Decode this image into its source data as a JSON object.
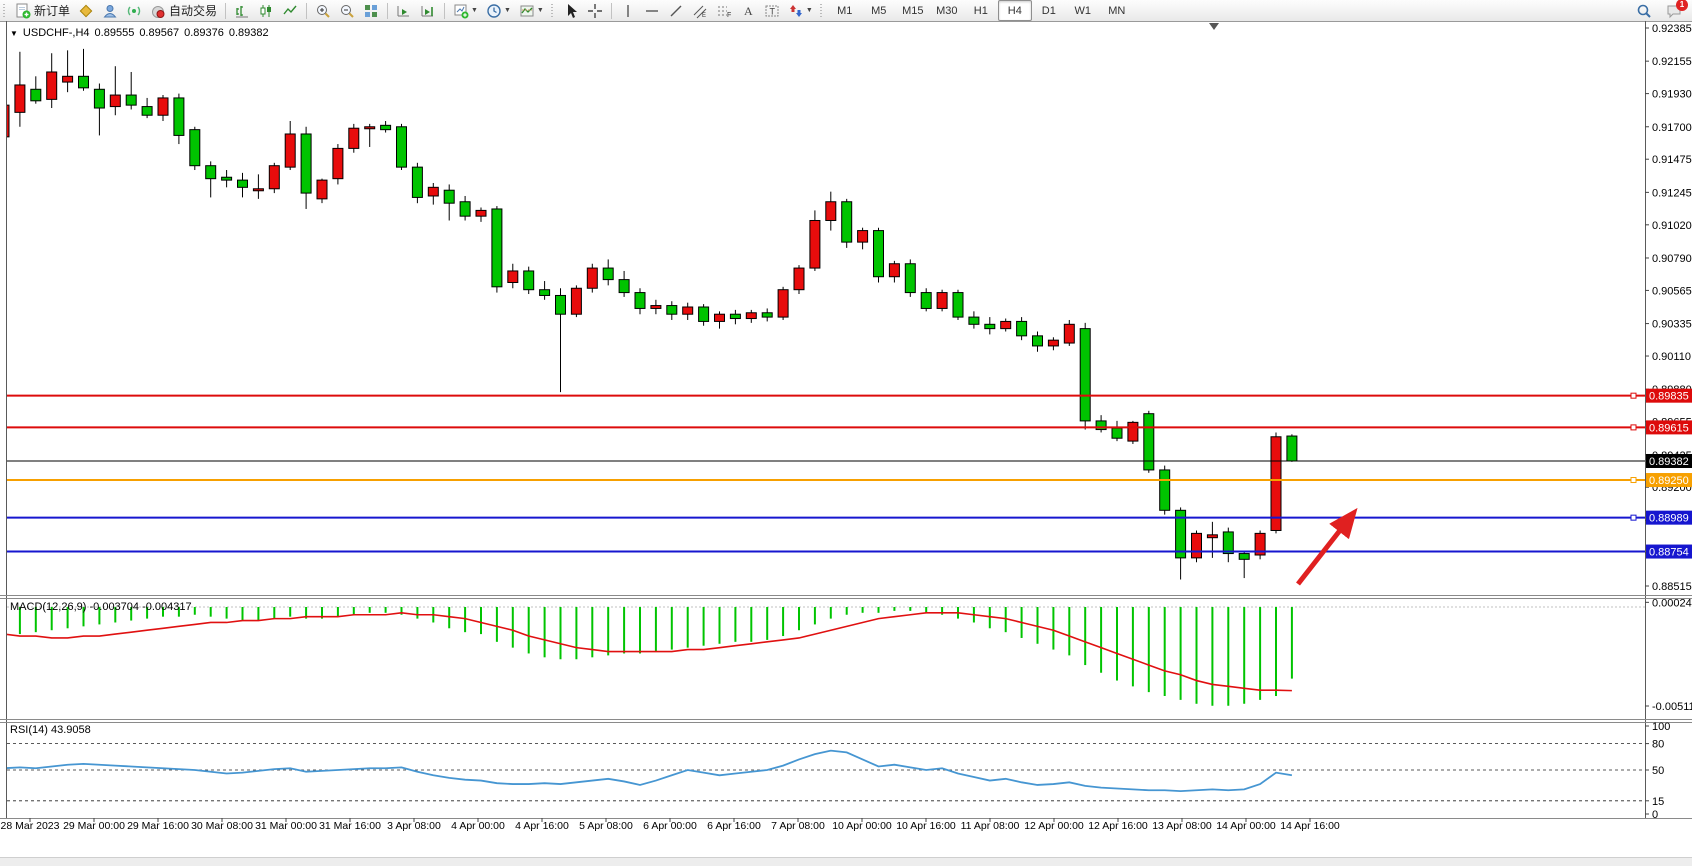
{
  "toolbar": {
    "new_order_label": "新订单",
    "auto_trading_label": "自动交易",
    "timeframes": [
      "M1",
      "M5",
      "M15",
      "M30",
      "H1",
      "H4",
      "D1",
      "W1",
      "MN"
    ],
    "active_timeframe": "H4",
    "notification_count": "1"
  },
  "chart_header": {
    "symbol": "USDCHF-,H4",
    "open": "0.89555",
    "high": "0.89567",
    "low": "0.89376",
    "close": "0.89382"
  },
  "price_axis": {
    "ticks": [
      "0.92385",
      "0.92155",
      "0.91930",
      "0.91700",
      "0.91475",
      "0.91245",
      "0.91020",
      "0.90790",
      "0.90565",
      "0.90335",
      "0.90110",
      "0.89880",
      "0.89655",
      "0.89425",
      "0.89200",
      "0.88970",
      "0.88745",
      "0.88515"
    ]
  },
  "hlines": [
    {
      "price": "0.89835",
      "value": 0.89835,
      "color": "#dd0b0b",
      "width": 2,
      "handle": true
    },
    {
      "price": "0.89615",
      "value": 0.89615,
      "color": "#dd0b0b",
      "width": 2,
      "handle": true
    },
    {
      "price": "0.89382",
      "value": 0.89382,
      "color": "#000000",
      "width": 1,
      "handle": false
    },
    {
      "price": "0.89250",
      "value": 0.8925,
      "color": "#f7a000",
      "width": 2,
      "handle": true
    },
    {
      "price": "0.88989",
      "value": 0.88989,
      "color": "#1616cf",
      "width": 2,
      "handle": true
    },
    {
      "price": "0.88754",
      "value": 0.88754,
      "color": "#1616cf",
      "width": 2,
      "handle": false
    }
  ],
  "time_axis": {
    "labels": [
      "28 Mar 2023",
      "29 Mar 00:00",
      "29 Mar 16:00",
      "30 Mar 08:00",
      "31 Mar 00:00",
      "31 Mar 16:00",
      "3 Apr 08:00",
      "4 Apr 00:00",
      "4 Apr 16:00",
      "5 Apr 08:00",
      "6 Apr 00:00",
      "6 Apr 16:00",
      "7 Apr 08:00",
      "10 Apr 00:00",
      "10 Apr 16:00",
      "11 Apr 08:00",
      "12 Apr 00:00",
      "12 Apr 16:00",
      "13 Apr 08:00",
      "14 Apr 00:00",
      "14 Apr 16:00"
    ]
  },
  "macd": {
    "label": "MACD(12,26,9)",
    "value_main": "-0.003704",
    "value_signal": "-0.004317",
    "axis_max": "0.000241",
    "axis_min": "-0.005115",
    "histogram_color": "#00c400",
    "signal_color": "#e01010",
    "histogram": [
      -0.0013,
      -0.0014,
      -0.0013,
      -0.0012,
      -0.0011,
      -0.001,
      -0.0009,
      -0.0008,
      -0.0007,
      -0.0006,
      -0.0005,
      -0.0005,
      -0.0004,
      -0.0005,
      -0.0006,
      -0.0007,
      -0.0007,
      -0.0006,
      -0.0005,
      -0.0006,
      -0.0006,
      -0.0005,
      -0.0004,
      -0.0003,
      -0.0003,
      -0.0004,
      -0.0006,
      -0.0008,
      -0.0011,
      -0.0013,
      -0.0014,
      -0.0018,
      -0.0021,
      -0.0024,
      -0.0026,
      -0.0027,
      -0.0027,
      -0.0026,
      -0.0025,
      -0.0024,
      -0.0024,
      -0.0023,
      -0.0022,
      -0.0021,
      -0.002,
      -0.0019,
      -0.0018,
      -0.0018,
      -0.0017,
      -0.0015,
      -0.0012,
      -0.0009,
      -0.0006,
      -0.0004,
      -0.0003,
      -0.0003,
      -0.0002,
      -0.0002,
      -0.0003,
      -0.0004,
      -0.0006,
      -0.0008,
      -0.0011,
      -0.0013,
      -0.0016,
      -0.0019,
      -0.0022,
      -0.0025,
      -0.003,
      -0.0034,
      -0.0038,
      -0.0041,
      -0.0044,
      -0.0046,
      -0.0048,
      -0.005,
      -0.0051,
      -0.0051,
      -0.005,
      -0.0048,
      -0.0046,
      -0.0037
    ],
    "signal": [
      -0.0014,
      -0.0015,
      -0.0015,
      -0.0016,
      -0.0016,
      -0.0015,
      -0.0015,
      -0.0014,
      -0.0013,
      -0.0012,
      -0.0011,
      -0.001,
      -0.0009,
      -0.0008,
      -0.0008,
      -0.0007,
      -0.0007,
      -0.0006,
      -0.0006,
      -0.0005,
      -0.0005,
      -0.0005,
      -0.0004,
      -0.0004,
      -0.0004,
      -0.0003,
      -0.0004,
      -0.0004,
      -0.0005,
      -0.0006,
      -0.0008,
      -0.001,
      -0.0012,
      -0.0015,
      -0.0017,
      -0.0019,
      -0.0021,
      -0.0022,
      -0.0023,
      -0.0023,
      -0.0023,
      -0.0023,
      -0.0023,
      -0.0022,
      -0.0022,
      -0.0021,
      -0.002,
      -0.0019,
      -0.0018,
      -0.0017,
      -0.0016,
      -0.0014,
      -0.0012,
      -0.001,
      -0.0008,
      -0.0006,
      -0.0005,
      -0.0004,
      -0.0003,
      -0.0003,
      -0.0003,
      -0.0004,
      -0.0005,
      -0.0006,
      -0.0008,
      -0.001,
      -0.0012,
      -0.0015,
      -0.0018,
      -0.0021,
      -0.0024,
      -0.0027,
      -0.003,
      -0.0033,
      -0.0035,
      -0.0038,
      -0.004,
      -0.0041,
      -0.0042,
      -0.0043,
      -0.0043,
      -0.00432
    ]
  },
  "rsi": {
    "label": "RSI(14)",
    "value": "43.9058",
    "line_color": "#4696d2",
    "levels": [
      {
        "v": 100,
        "label": "100",
        "dashed": false
      },
      {
        "v": 80,
        "label": "80",
        "dashed": true
      },
      {
        "v": 50,
        "label": "50",
        "dashed": true
      },
      {
        "v": 15,
        "label": "15",
        "dashed": true
      },
      {
        "v": 0,
        "label": "0",
        "dashed": false
      }
    ],
    "values": [
      52,
      53,
      52,
      54,
      56,
      57,
      56,
      55,
      54,
      53,
      52,
      51,
      50,
      48,
      46,
      47,
      49,
      51,
      52,
      48,
      49,
      50,
      51,
      52,
      52,
      53,
      48,
      44,
      41,
      39,
      38,
      35,
      34,
      34,
      35,
      34,
      36,
      38,
      40,
      37,
      33,
      38,
      44,
      50,
      47,
      44,
      46,
      48,
      50,
      55,
      62,
      68,
      72,
      70,
      62,
      54,
      56,
      53,
      50,
      52,
      46,
      42,
      38,
      40,
      36,
      33,
      34,
      36,
      32,
      30,
      29,
      28,
      27,
      27,
      26,
      27,
      28,
      27,
      28,
      34,
      47,
      44
    ]
  },
  "chart_data": {
    "type": "candlestick",
    "symbol": "USDCHF",
    "timeframe": "H4",
    "bull_color": "#e80c0c",
    "bear_color": "#00c400",
    "outline": "#000000",
    "axis_min": 0.88515,
    "axis_max": 0.92385,
    "candles": [
      [
        0.9163,
        0.9187,
        0.9152,
        0.9185
      ],
      [
        0.918,
        0.9222,
        0.917,
        0.9199
      ],
      [
        0.9196,
        0.9205,
        0.9186,
        0.9188
      ],
      [
        0.9189,
        0.9221,
        0.9183,
        0.9208
      ],
      [
        0.9201,
        0.9223,
        0.9194,
        0.9205
      ],
      [
        0.9205,
        0.9224,
        0.9195,
        0.9197
      ],
      [
        0.9196,
        0.92,
        0.9164,
        0.9183
      ],
      [
        0.9184,
        0.9212,
        0.9178,
        0.9192
      ],
      [
        0.9192,
        0.9208,
        0.9182,
        0.9185
      ],
      [
        0.9184,
        0.919,
        0.9176,
        0.9178
      ],
      [
        0.9178,
        0.9192,
        0.9174,
        0.919
      ],
      [
        0.919,
        0.9193,
        0.9158,
        0.9164
      ],
      [
        0.9168,
        0.917,
        0.914,
        0.9143
      ],
      [
        0.9143,
        0.9146,
        0.9121,
        0.9134
      ],
      [
        0.9135,
        0.914,
        0.9128,
        0.9133
      ],
      [
        0.9133,
        0.9138,
        0.9121,
        0.9128
      ],
      [
        0.9126,
        0.9137,
        0.912,
        0.9127
      ],
      [
        0.9127,
        0.9145,
        0.9124,
        0.9143
      ],
      [
        0.9142,
        0.9174,
        0.914,
        0.9165
      ],
      [
        0.9165,
        0.917,
        0.9113,
        0.9124
      ],
      [
        0.912,
        0.9134,
        0.9117,
        0.9133
      ],
      [
        0.9134,
        0.9158,
        0.913,
        0.9155
      ],
      [
        0.9155,
        0.9172,
        0.9152,
        0.9169
      ],
      [
        0.9169,
        0.9172,
        0.9156,
        0.917
      ],
      [
        0.9171,
        0.9174,
        0.9166,
        0.9168
      ],
      [
        0.917,
        0.9172,
        0.914,
        0.9142
      ],
      [
        0.9142,
        0.9145,
        0.9117,
        0.9121
      ],
      [
        0.9122,
        0.9131,
        0.9116,
        0.9128
      ],
      [
        0.9126,
        0.913,
        0.9105,
        0.9117
      ],
      [
        0.9118,
        0.9122,
        0.9105,
        0.9108
      ],
      [
        0.9108,
        0.9114,
        0.9104,
        0.9112
      ],
      [
        0.9113,
        0.9115,
        0.9055,
        0.9059
      ],
      [
        0.9062,
        0.9075,
        0.9058,
        0.907
      ],
      [
        0.907,
        0.9073,
        0.9054,
        0.9057
      ],
      [
        0.9057,
        0.9063,
        0.905,
        0.9053
      ],
      [
        0.9053,
        0.9058,
        0.8986,
        0.904
      ],
      [
        0.904,
        0.906,
        0.9038,
        0.9058
      ],
      [
        0.9058,
        0.9075,
        0.9055,
        0.9072
      ],
      [
        0.9072,
        0.9078,
        0.906,
        0.9064
      ],
      [
        0.9064,
        0.907,
        0.9052,
        0.9055
      ],
      [
        0.9055,
        0.9058,
        0.904,
        0.9044
      ],
      [
        0.9044,
        0.905,
        0.904,
        0.9046
      ],
      [
        0.9046,
        0.9049,
        0.9036,
        0.904
      ],
      [
        0.904,
        0.9048,
        0.9036,
        0.9045
      ],
      [
        0.9045,
        0.9047,
        0.9032,
        0.9035
      ],
      [
        0.9035,
        0.9042,
        0.903,
        0.904
      ],
      [
        0.904,
        0.9043,
        0.9033,
        0.9037
      ],
      [
        0.9037,
        0.9043,
        0.9034,
        0.9041
      ],
      [
        0.9041,
        0.9044,
        0.9035,
        0.9038
      ],
      [
        0.9038,
        0.9059,
        0.9036,
        0.9057
      ],
      [
        0.9057,
        0.9074,
        0.9054,
        0.9072
      ],
      [
        0.9072,
        0.9112,
        0.907,
        0.9105
      ],
      [
        0.9105,
        0.9125,
        0.9098,
        0.9118
      ],
      [
        0.9118,
        0.912,
        0.9086,
        0.909
      ],
      [
        0.909,
        0.91,
        0.9085,
        0.9098
      ],
      [
        0.9098,
        0.91,
        0.9062,
        0.9066
      ],
      [
        0.9066,
        0.9077,
        0.9062,
        0.9075
      ],
      [
        0.9075,
        0.9078,
        0.9052,
        0.9055
      ],
      [
        0.9055,
        0.9058,
        0.9042,
        0.9044
      ],
      [
        0.9044,
        0.9057,
        0.9042,
        0.9055
      ],
      [
        0.9055,
        0.9057,
        0.9036,
        0.9038
      ],
      [
        0.9038,
        0.9042,
        0.903,
        0.9033
      ],
      [
        0.9033,
        0.9038,
        0.9026,
        0.903
      ],
      [
        0.903,
        0.9037,
        0.9028,
        0.9035
      ],
      [
        0.9035,
        0.9038,
        0.9022,
        0.9025
      ],
      [
        0.9025,
        0.9028,
        0.9014,
        0.9018
      ],
      [
        0.9018,
        0.9024,
        0.9015,
        0.9022
      ],
      [
        0.902,
        0.9036,
        0.9018,
        0.9033
      ],
      [
        0.903,
        0.9034,
        0.896,
        0.8966
      ],
      [
        0.8966,
        0.897,
        0.8958,
        0.896
      ],
      [
        0.8961,
        0.8966,
        0.8952,
        0.8954
      ],
      [
        0.8952,
        0.8966,
        0.895,
        0.8965
      ],
      [
        0.8971,
        0.8973,
        0.893,
        0.8932
      ],
      [
        0.8932,
        0.8935,
        0.8901,
        0.8904
      ],
      [
        0.8904,
        0.8906,
        0.8856,
        0.8871
      ],
      [
        0.8871,
        0.889,
        0.8868,
        0.8888
      ],
      [
        0.8885,
        0.8896,
        0.8871,
        0.8887
      ],
      [
        0.8889,
        0.8892,
        0.8868,
        0.8874
      ],
      [
        0.8874,
        0.8876,
        0.8857,
        0.887
      ],
      [
        0.8873,
        0.889,
        0.887,
        0.8888
      ],
      [
        0.889,
        0.8958,
        0.8888,
        0.8955
      ],
      [
        0.89555,
        0.89567,
        0.89376,
        0.89382
      ]
    ]
  },
  "annotations": {
    "arrow_color": "#e02020"
  }
}
